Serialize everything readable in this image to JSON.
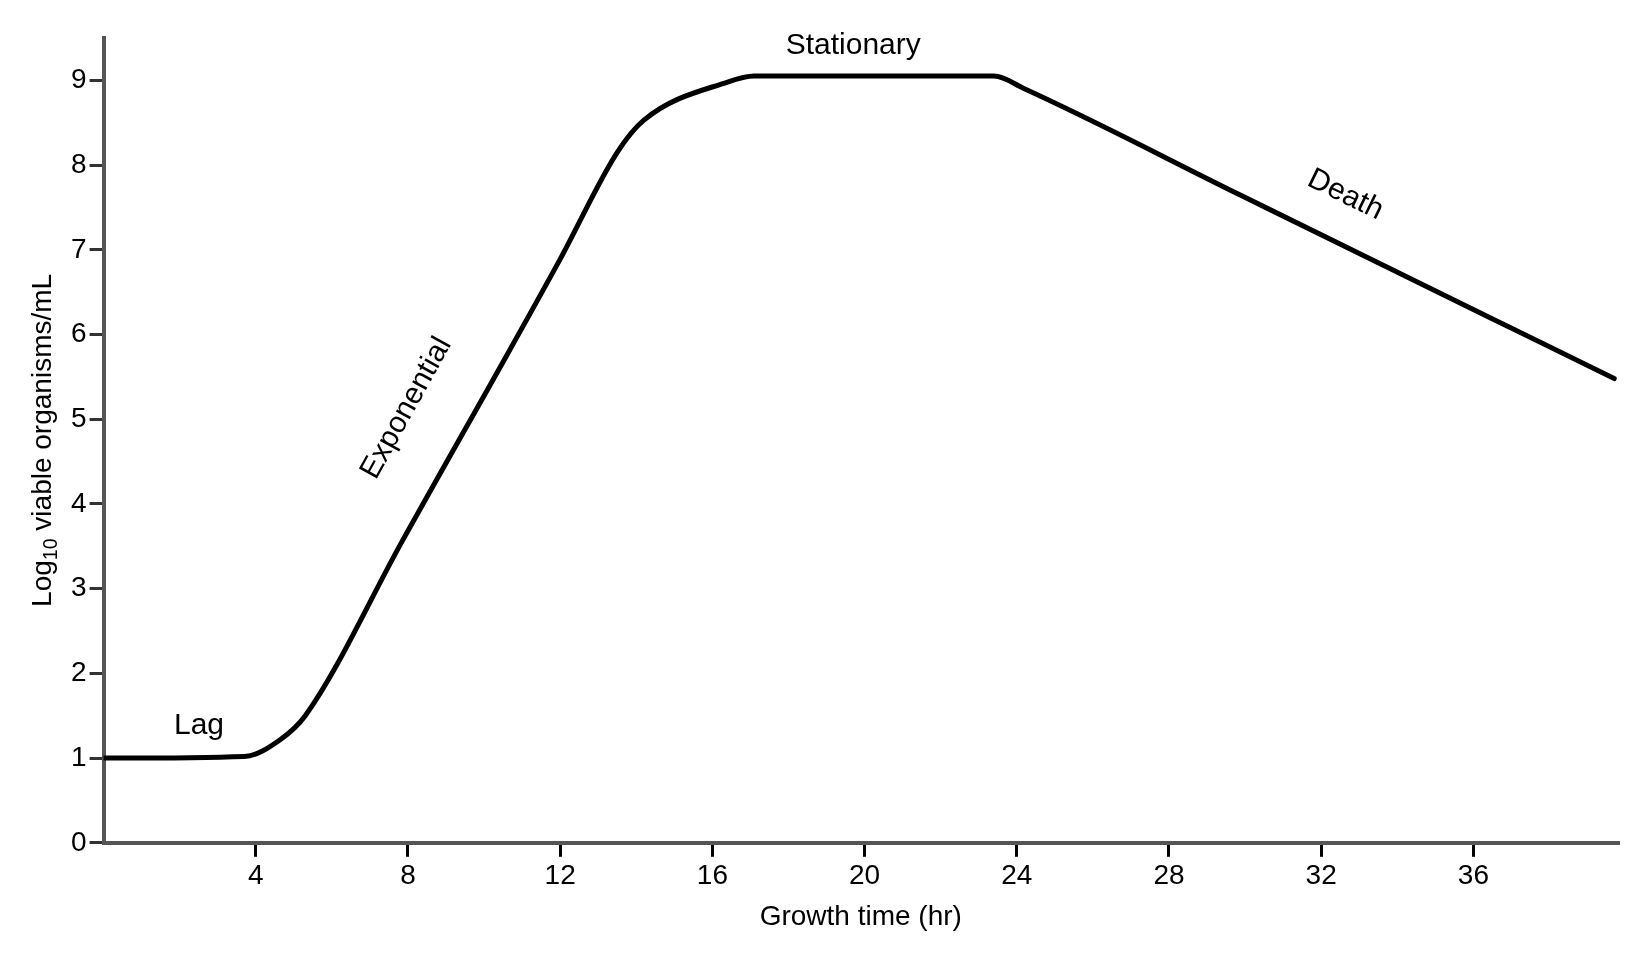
{
  "chart_data": {
    "type": "line",
    "xlabel": "Growth time (hr)",
    "ylabel": "Log$_{10}$ viable organisms/mL",
    "x": [
      0,
      3.7,
      4.65,
      5.3,
      7.86,
      12.0,
      13.5,
      14.2,
      16.4,
      17.1,
      23.4,
      24.2,
      29.9,
      39.7
    ],
    "series": [
      {
        "color": "#000000",
        "values": [
          1,
          1.02,
          1.22,
          1.5,
          3.57,
          6.89,
          8.15,
          8.53,
          8.98,
          9.05,
          9.05,
          8.9,
          7.64,
          5.48
        ]
      }
    ],
    "xlim": [
      0,
      39.8
    ],
    "xticks": [
      4,
      8,
      12,
      16,
      20,
      24,
      28,
      32,
      36
    ],
    "ylim": [
      0,
      9.5
    ],
    "yticks": [
      0,
      1,
      2,
      3,
      4,
      5,
      6,
      7,
      8,
      9
    ],
    "grid": false,
    "legend": false,
    "marker": "none",
    "line_style": "solid",
    "annotations": [
      "Lag",
      "Exponential",
      "Stationary",
      "Death"
    ]
  }
}
